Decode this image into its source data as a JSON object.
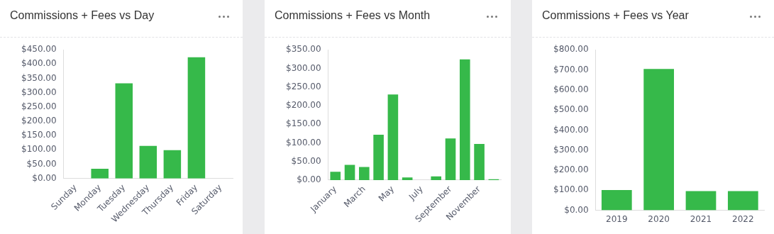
{
  "chart_data": [
    {
      "type": "bar",
      "title": "Commissions + Fees vs Day",
      "categories": [
        "Sunday",
        "Monday",
        "Tuesday",
        "Wednesday",
        "Thursday",
        "Friday",
        "Saturday"
      ],
      "values": [
        0,
        34,
        333,
        114,
        99,
        424,
        0
      ],
      "color": "#36b94a",
      "ylim": [
        0,
        450
      ],
      "yticks": [
        {
          "value": 0,
          "label": "$0.00"
        },
        {
          "value": 50,
          "label": "$50.00"
        },
        {
          "value": 100,
          "label": "$100.00"
        },
        {
          "value": 150,
          "label": "$150.00"
        },
        {
          "value": 200,
          "label": "$200.00"
        },
        {
          "value": 250,
          "label": "$250.00"
        },
        {
          "value": 300,
          "label": "$300.00"
        },
        {
          "value": 350,
          "label": "$350.00"
        },
        {
          "value": 400,
          "label": "$400.00"
        },
        {
          "value": 450,
          "label": "$450.00"
        }
      ],
      "grid": false,
      "legend": false
    },
    {
      "type": "bar",
      "title": "Commissions + Fees vs Month",
      "categories": [
        "January",
        null,
        "March",
        null,
        "May",
        null,
        "July",
        null,
        "September",
        null,
        "November",
        null
      ],
      "values": [
        22,
        41,
        35,
        122,
        230,
        7,
        0,
        10,
        112,
        324,
        97,
        2
      ],
      "color": "#36b94a",
      "ylim": [
        0,
        350
      ],
      "yticks": [
        {
          "value": 0,
          "label": "$0.00"
        },
        {
          "value": 50,
          "label": "$50.00"
        },
        {
          "value": 100,
          "label": "$100.00"
        },
        {
          "value": 150,
          "label": "$150.00"
        },
        {
          "value": 200,
          "label": "$200.00"
        },
        {
          "value": 250,
          "label": "$250.00"
        },
        {
          "value": 300,
          "label": "$300.00"
        },
        {
          "value": 350,
          "label": "$350.00"
        }
      ],
      "grid": false,
      "legend": false
    },
    {
      "type": "bar",
      "title": "Commissions + Fees vs Year",
      "categories": [
        "2019",
        "2020",
        "2021",
        "2022"
      ],
      "values": [
        101,
        704,
        96,
        96
      ],
      "color": "#36b94a",
      "ylim": [
        0,
        800
      ],
      "yticks": [
        {
          "value": 0,
          "label": "$0.00"
        },
        {
          "value": 100,
          "label": "$100.00"
        },
        {
          "value": 200,
          "label": "$200.00"
        },
        {
          "value": 300,
          "label": "$300.00"
        },
        {
          "value": 400,
          "label": "$400.00"
        },
        {
          "value": 500,
          "label": "$500.00"
        },
        {
          "value": 600,
          "label": "$600.00"
        },
        {
          "value": 700,
          "label": "$700.00"
        },
        {
          "value": 800,
          "label": "$800.00"
        }
      ],
      "grid": false,
      "legend": false
    }
  ]
}
